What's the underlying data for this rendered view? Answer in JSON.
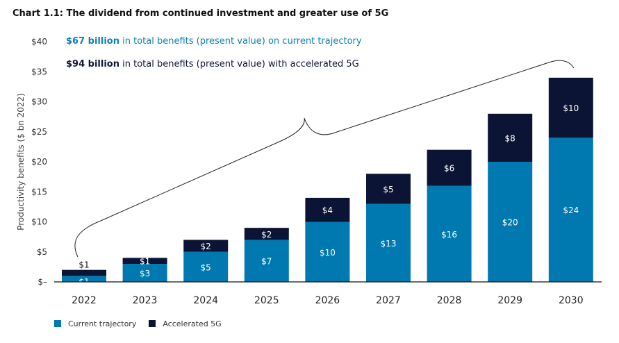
{
  "title": "Chart 1.1: The dividend from continued investment and greater use of 5G",
  "annotations": [
    {
      "bold": "$67 billion",
      "text": " in total benefits (present value) on current trajectory"
    },
    {
      "bold": "$94 billion",
      "text": " in total benefits (present value) with accelerated 5G"
    }
  ],
  "colors": {
    "current": "#0079b0",
    "accelerated": "#0b1434",
    "ann1": "#0e7fb4"
  },
  "chart_data": {
    "type": "bar",
    "stacked": true,
    "categories": [
      "2022",
      "2023",
      "2024",
      "2025",
      "2026",
      "2027",
      "2028",
      "2029",
      "2030"
    ],
    "series": [
      {
        "name": "Current trajectory",
        "values": [
          1,
          3,
          5,
          7,
          10,
          13,
          16,
          20,
          24
        ],
        "labels": [
          "$1",
          "$3",
          "$5",
          "$7",
          "$10",
          "$13",
          "$16",
          "$20",
          "$24"
        ]
      },
      {
        "name": "Accelerated 5G",
        "values": [
          1,
          1,
          2,
          2,
          4,
          5,
          6,
          8,
          10
        ],
        "labels": [
          "$1",
          "$1",
          "$2",
          "$2",
          "$4",
          "$5",
          "$6",
          "$8",
          "$10"
        ]
      }
    ],
    "ylabel": "Productivity benefits ($ bn 2022)",
    "ylim": [
      0,
      40
    ],
    "yticks": [
      0,
      5,
      10,
      15,
      20,
      25,
      30,
      35,
      40
    ],
    "ytick_labels": [
      "$–",
      "$5",
      "$10",
      "$15",
      "$20",
      "$25",
      "$30",
      "$35",
      "$40"
    ],
    "grid": false,
    "legend": "bottom-left"
  }
}
